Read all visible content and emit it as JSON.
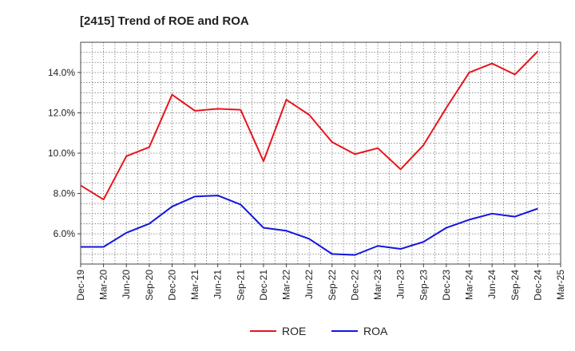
{
  "chart_data": {
    "type": "line",
    "title": "[2415]  Trend of ROE and ROA",
    "xlabel": "",
    "ylabel": "",
    "x_ticks": [
      "Dec-19",
      "Mar-20",
      "Jun-20",
      "Sep-20",
      "Dec-20",
      "Mar-21",
      "Jun-21",
      "Sep-21",
      "Dec-21",
      "Mar-22",
      "Jun-22",
      "Sep-22",
      "Dec-22",
      "Mar-23",
      "Jun-23",
      "Sep-23",
      "Dec-23",
      "Mar-24",
      "Jun-24",
      "Sep-24",
      "Dec-24",
      "Mar-25"
    ],
    "categories": [
      "Dec-19",
      "Mar-20",
      "Jun-20",
      "Sep-20",
      "Dec-20",
      "Mar-21",
      "Jun-21",
      "Sep-21",
      "Dec-21",
      "Mar-22",
      "Jun-22",
      "Sep-22",
      "Dec-22",
      "Mar-23",
      "Jun-23",
      "Sep-23",
      "Dec-23",
      "Mar-24",
      "Jun-24",
      "Sep-24",
      "Dec-24"
    ],
    "ylim": [
      4.5,
      15.5
    ],
    "y_ticks": [
      6.0,
      8.0,
      10.0,
      12.0,
      14.0
    ],
    "y_tick_labels": [
      "6.0%",
      "8.0%",
      "10.0%",
      "12.0%",
      "14.0%"
    ],
    "grid": true,
    "legend_placement": "bottom-center",
    "series": [
      {
        "name": "ROE",
        "color": "#e8141c",
        "values": [
          8.4,
          7.7,
          9.85,
          10.3,
          12.9,
          12.1,
          12.2,
          12.15,
          9.6,
          12.65,
          11.9,
          10.55,
          9.95,
          10.25,
          9.2,
          10.4,
          12.25,
          14.0,
          14.45,
          13.9,
          15.05
        ]
      },
      {
        "name": "ROA",
        "color": "#1414e0",
        "values": [
          5.35,
          5.35,
          6.05,
          6.5,
          7.35,
          7.85,
          7.9,
          7.45,
          6.3,
          6.15,
          5.75,
          5.0,
          4.95,
          5.4,
          5.25,
          5.6,
          6.3,
          6.7,
          7.0,
          6.85,
          7.25
        ]
      }
    ]
  }
}
